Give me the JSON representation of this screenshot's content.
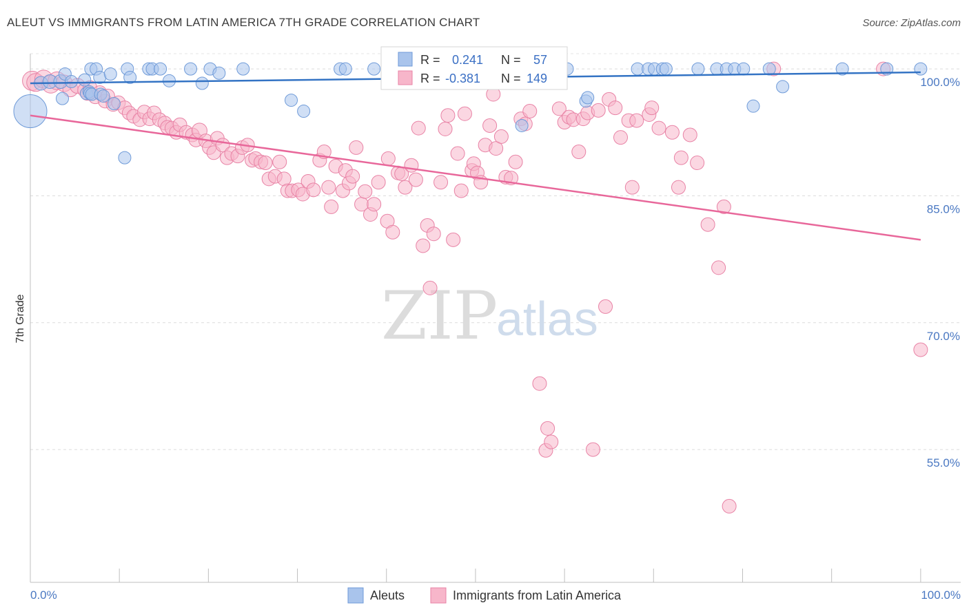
{
  "chart_data": {
    "type": "scatter",
    "title": "ALEUT VS IMMIGRANTS FROM LATIN AMERICA 7TH GRADE CORRELATION CHART",
    "source": "Source: ZipAtlas.com",
    "xlabel": "",
    "ylabel": "7th Grade",
    "xlim": [
      0,
      104.5
    ],
    "ylim": [
      39.3,
      101.8
    ],
    "x_tick_labels": [
      {
        "value": 0,
        "label": "0.0%"
      },
      {
        "value": 100,
        "label": "100.0%"
      }
    ],
    "x_minor_ticks": [
      0,
      10,
      20,
      30,
      40,
      50,
      60,
      70,
      80,
      90,
      100
    ],
    "y_ticks": [
      {
        "value": 100,
        "label": "100.0%"
      },
      {
        "value": 85,
        "label": "85.0%"
      },
      {
        "value": 70,
        "label": "70.0%"
      },
      {
        "value": 55,
        "label": "55.0%"
      }
    ],
    "grid": "horizontal dashed",
    "legend_position": "bottom-center",
    "watermark": {
      "part1": "ZIP",
      "part2": "atlas"
    },
    "stats": [
      {
        "series": "Aleuts",
        "r_label": "R =",
        "r": "0.241",
        "n_label": "N =",
        "n": "57"
      },
      {
        "series": "Immigrants from Latin America",
        "r_label": "R =",
        "r": "-0.381",
        "n_label": "N =",
        "n": "149"
      }
    ],
    "series": [
      {
        "name": "Aleuts",
        "color": "#a9c4ec",
        "edge": "#6e9ad8",
        "line_color": "#3373c4",
        "trend": [
          [
            0,
            98.3
          ],
          [
            100,
            99.6
          ]
        ],
        "points": [
          [
            0,
            95.0,
            24
          ],
          [
            1.2,
            98.3,
            10
          ],
          [
            2.2,
            98.5,
            10
          ],
          [
            3.4,
            98.5,
            10
          ],
          [
            3.6,
            96.5,
            9
          ],
          [
            3.9,
            99.4,
            9
          ],
          [
            4.6,
            98.5,
            9
          ],
          [
            6.1,
            98.7,
            9
          ],
          [
            6.3,
            97.1,
            9
          ],
          [
            6.6,
            97.3,
            9
          ],
          [
            6.7,
            97.1,
            9
          ],
          [
            6.9,
            97.0,
            9
          ],
          [
            7.9,
            97.0,
            9
          ],
          [
            8.2,
            96.8,
            9
          ],
          [
            6.8,
            100,
            9
          ],
          [
            7.4,
            100,
            9
          ],
          [
            7.8,
            99.0,
            9
          ],
          [
            9.0,
            99.4,
            9
          ],
          [
            9.4,
            95.9,
            9
          ],
          [
            10.6,
            89.5,
            9
          ],
          [
            10.9,
            100,
            9
          ],
          [
            11.2,
            99.0,
            9
          ],
          [
            13.3,
            100,
            9
          ],
          [
            13.7,
            100,
            9
          ],
          [
            14.6,
            100,
            9
          ],
          [
            15.6,
            98.6,
            9
          ],
          [
            18.0,
            100,
            9
          ],
          [
            19.3,
            98.3,
            9
          ],
          [
            20.2,
            100,
            9
          ],
          [
            21.2,
            99.5,
            9
          ],
          [
            23.9,
            100,
            9
          ],
          [
            29.3,
            96.3,
            9
          ],
          [
            30.7,
            95.0,
            9
          ],
          [
            34.8,
            100,
            9
          ],
          [
            35.4,
            100,
            9
          ],
          [
            38.6,
            100,
            9
          ],
          [
            47.0,
            100,
            9
          ],
          [
            52.7,
            100,
            9
          ],
          [
            53.5,
            99.5,
            9
          ],
          [
            55.2,
            93.3,
            9
          ],
          [
            58.4,
            100,
            9
          ],
          [
            58.9,
            100,
            9
          ],
          [
            60.3,
            100,
            9
          ],
          [
            62.4,
            96.2,
            9
          ],
          [
            62.6,
            96.6,
            9
          ],
          [
            68.2,
            100,
            9
          ],
          [
            69.4,
            100,
            9
          ],
          [
            70.1,
            100,
            9
          ],
          [
            71.0,
            100,
            9
          ],
          [
            71.4,
            100,
            9
          ],
          [
            75.0,
            100,
            9
          ],
          [
            77.1,
            100,
            9
          ],
          [
            78.2,
            100,
            9
          ],
          [
            79.1,
            100,
            9
          ],
          [
            80.1,
            100,
            9
          ],
          [
            81.2,
            95.6,
            9
          ],
          [
            83.0,
            100,
            9
          ],
          [
            84.5,
            97.9,
            9
          ],
          [
            91.2,
            100,
            9
          ],
          [
            96.2,
            100,
            9
          ],
          [
            100,
            100,
            9
          ]
        ]
      },
      {
        "name": "Immigrants from Latin America",
        "color": "#f7b6ca",
        "edge": "#e882a5",
        "line_color": "#e8679a",
        "trend": [
          [
            0,
            94.5
          ],
          [
            100,
            79.8
          ]
        ],
        "points": [
          [
            0.2,
            98.6,
            14
          ],
          [
            0.6,
            98.4,
            13
          ],
          [
            1.5,
            98.8,
            13
          ],
          [
            2.3,
            98.2,
            13
          ],
          [
            3.0,
            98.6,
            13
          ],
          [
            3.8,
            98.3,
            12
          ],
          [
            4.5,
            97.6,
            11
          ],
          [
            5.3,
            98.0,
            11
          ],
          [
            6.1,
            97.5,
            10
          ],
          [
            6.4,
            97.1,
            10
          ],
          [
            6.7,
            97.8,
            10
          ],
          [
            7.3,
            96.7,
            10
          ],
          [
            7.8,
            97.2,
            10
          ],
          [
            8.4,
            96.2,
            10
          ],
          [
            8.7,
            96.8,
            10
          ],
          [
            9.3,
            95.8,
            10
          ],
          [
            9.9,
            96.0,
            10
          ],
          [
            10.6,
            95.4,
            10
          ],
          [
            11.1,
            94.8,
            10
          ],
          [
            11.6,
            94.4,
            10
          ],
          [
            12.3,
            94.0,
            10
          ],
          [
            12.8,
            94.9,
            10
          ],
          [
            13.4,
            94.1,
            10
          ],
          [
            13.9,
            94.8,
            10
          ],
          [
            14.5,
            94.0,
            10
          ],
          [
            15.1,
            93.6,
            10
          ],
          [
            15.4,
            93.1,
            10
          ],
          [
            15.9,
            93.0,
            10
          ],
          [
            16.4,
            92.5,
            10
          ],
          [
            16.8,
            93.4,
            10
          ],
          [
            17.5,
            92.5,
            10
          ],
          [
            18.2,
            92.2,
            10
          ],
          [
            18.6,
            91.6,
            10
          ],
          [
            19.0,
            92.7,
            11
          ],
          [
            19.7,
            91.5,
            10
          ],
          [
            20.1,
            90.7,
            10
          ],
          [
            20.6,
            90.1,
            10
          ],
          [
            21.0,
            91.8,
            10
          ],
          [
            21.6,
            91.0,
            10
          ],
          [
            22.1,
            89.5,
            10
          ],
          [
            22.6,
            90.0,
            10
          ],
          [
            23.3,
            89.7,
            10
          ],
          [
            23.8,
            90.7,
            10
          ],
          [
            24.4,
            91.0,
            10
          ],
          [
            24.9,
            89.2,
            10
          ],
          [
            25.3,
            89.4,
            10
          ],
          [
            25.9,
            89.0,
            10
          ],
          [
            26.4,
            88.9,
            10
          ],
          [
            26.8,
            87.0,
            10
          ],
          [
            27.5,
            87.3,
            10
          ],
          [
            28.0,
            89.0,
            10
          ],
          [
            28.5,
            87.0,
            10
          ],
          [
            28.9,
            85.6,
            10
          ],
          [
            29.4,
            85.6,
            10
          ],
          [
            30.1,
            85.7,
            10
          ],
          [
            30.6,
            85.2,
            10
          ],
          [
            31.2,
            86.7,
            10
          ],
          [
            31.8,
            85.7,
            10
          ],
          [
            32.5,
            89.2,
            10
          ],
          [
            33.0,
            90.2,
            10
          ],
          [
            33.5,
            86.0,
            10
          ],
          [
            33.8,
            83.7,
            10
          ],
          [
            34.3,
            88.5,
            10
          ],
          [
            35.1,
            85.6,
            10
          ],
          [
            35.4,
            88.0,
            10
          ],
          [
            35.8,
            86.5,
            10
          ],
          [
            36.2,
            87.3,
            10
          ],
          [
            36.6,
            90.7,
            10
          ],
          [
            37.2,
            84.0,
            10
          ],
          [
            37.6,
            85.5,
            10
          ],
          [
            38.2,
            82.8,
            10
          ],
          [
            38.6,
            84.0,
            10
          ],
          [
            39.1,
            86.6,
            10
          ],
          [
            40.2,
            89.4,
            10
          ],
          [
            40.1,
            82.0,
            10
          ],
          [
            40.7,
            80.7,
            10
          ],
          [
            41.3,
            87.7,
            10
          ],
          [
            41.7,
            87.6,
            10
          ],
          [
            42.1,
            86.0,
            10
          ],
          [
            42.8,
            88.6,
            10
          ],
          [
            43.3,
            86.9,
            10
          ],
          [
            43.6,
            93.0,
            10
          ],
          [
            44.1,
            79.1,
            10
          ],
          [
            44.6,
            81.5,
            10
          ],
          [
            44.9,
            74.1,
            10
          ],
          [
            45.3,
            80.5,
            10
          ],
          [
            46.1,
            86.6,
            10
          ],
          [
            46.6,
            92.9,
            10
          ],
          [
            46.9,
            94.5,
            10
          ],
          [
            47.5,
            79.8,
            10
          ],
          [
            48.0,
            90.0,
            10
          ],
          [
            48.4,
            85.6,
            10
          ],
          [
            48.8,
            94.7,
            10
          ],
          [
            49.6,
            88.0,
            10
          ],
          [
            49.8,
            88.8,
            10
          ],
          [
            50.2,
            87.7,
            10
          ],
          [
            50.6,
            86.6,
            10
          ],
          [
            51.1,
            91.0,
            10
          ],
          [
            51.6,
            93.3,
            10
          ],
          [
            52.0,
            97.0,
            10
          ],
          [
            52.3,
            90.6,
            10
          ],
          [
            52.9,
            92.0,
            10
          ],
          [
            53.4,
            87.2,
            10
          ],
          [
            54.0,
            87.1,
            10
          ],
          [
            54.5,
            89.0,
            10
          ],
          [
            55.1,
            94.1,
            10
          ],
          [
            55.6,
            93.5,
            10
          ],
          [
            56.1,
            95.0,
            10
          ],
          [
            57.2,
            62.8,
            10
          ],
          [
            58.1,
            57.5,
            10
          ],
          [
            57.9,
            54.9,
            10
          ],
          [
            58.5,
            55.9,
            10
          ],
          [
            59.4,
            95.3,
            10
          ],
          [
            60.0,
            93.7,
            10
          ],
          [
            60.5,
            94.3,
            10
          ],
          [
            61.0,
            94.0,
            10
          ],
          [
            61.6,
            90.2,
            10
          ],
          [
            62.1,
            94.1,
            10
          ],
          [
            62.6,
            94.8,
            10
          ],
          [
            63.2,
            55.0,
            10
          ],
          [
            63.8,
            95.1,
            10
          ],
          [
            64.6,
            71.9,
            10
          ],
          [
            65.0,
            96.4,
            10
          ],
          [
            65.7,
            95.4,
            10
          ],
          [
            66.3,
            91.9,
            10
          ],
          [
            67.2,
            93.9,
            10
          ],
          [
            67.6,
            86.0,
            10
          ],
          [
            68.1,
            93.9,
            10
          ],
          [
            69.5,
            94.6,
            10
          ],
          [
            69.8,
            95.4,
            10
          ],
          [
            70.6,
            93.0,
            10
          ],
          [
            72.1,
            92.5,
            10
          ],
          [
            72.8,
            86.0,
            10
          ],
          [
            73.1,
            89.5,
            10
          ],
          [
            74.1,
            92.2,
            10
          ],
          [
            74.9,
            88.9,
            10
          ],
          [
            76.1,
            81.6,
            10
          ],
          [
            77.3,
            76.5,
            10
          ],
          [
            77.9,
            83.7,
            10
          ],
          [
            78.5,
            48.3,
            10
          ],
          [
            83.5,
            100.0,
            10
          ],
          [
            95.8,
            100.0,
            10
          ],
          [
            100.0,
            66.8,
            10
          ]
        ]
      }
    ]
  },
  "legend": {
    "items": [
      {
        "label": "Aleuts"
      },
      {
        "label": "Immigrants from Latin America"
      }
    ]
  }
}
